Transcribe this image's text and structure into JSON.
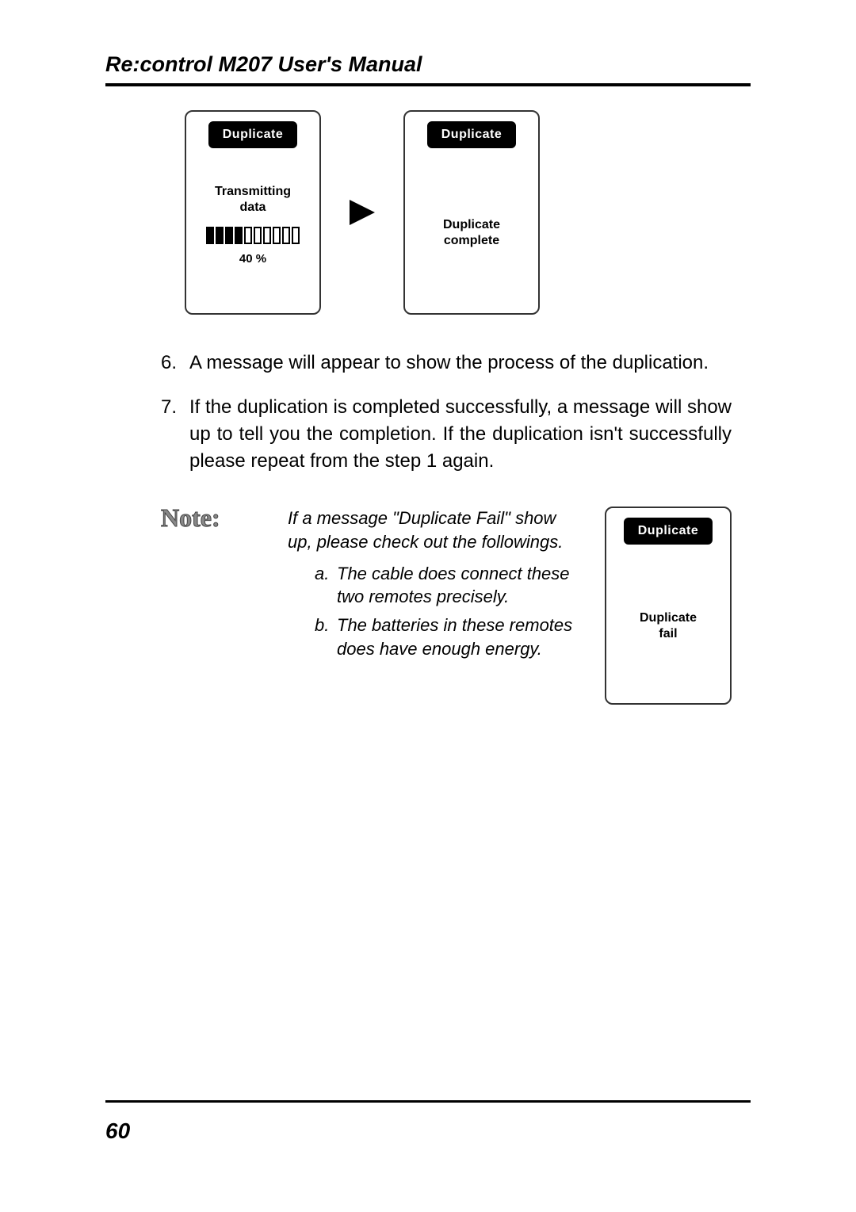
{
  "header": {
    "title": "Re:control M207 User's Manual"
  },
  "screens": {
    "progress": {
      "chip": "Duplicate",
      "line1": "Transmitting",
      "line2": "data",
      "percent": "40 %",
      "bar": {
        "total": 10,
        "filled": 4
      }
    },
    "complete": {
      "chip": "Duplicate",
      "line1": "Duplicate",
      "line2": "complete"
    },
    "fail": {
      "chip": "Duplicate",
      "line1": "Duplicate",
      "line2": "fail"
    },
    "arrow_color": "#000000"
  },
  "list": {
    "items": [
      {
        "n": "6.",
        "text": "A message will appear to show the process of the duplication."
      },
      {
        "n": "7.",
        "text": "If the duplication is completed successfully, a message will show up to tell you the completion. If the duplication isn't successfully please repeat from the step 1 again."
      }
    ]
  },
  "note": {
    "label": "Note:",
    "intro": "If a message \"Duplicate Fail\" show up, please check out the followings.",
    "items": [
      {
        "m": "a.",
        "t": "The cable does connect these two remotes precisely."
      },
      {
        "m": "b.",
        "t": "The batteries in these remotes does have enough energy."
      }
    ]
  },
  "footer": {
    "page": "60"
  },
  "style": {
    "page_bg": "#ffffff",
    "text_color": "#000000",
    "rule_color": "#000000",
    "chip_bg": "#000000",
    "chip_fg": "#ffffff",
    "note_label_color": "#888888",
    "body_fontsize": 24,
    "note_fontsize": 22,
    "header_fontsize": 27,
    "pagenum_fontsize": 28
  }
}
